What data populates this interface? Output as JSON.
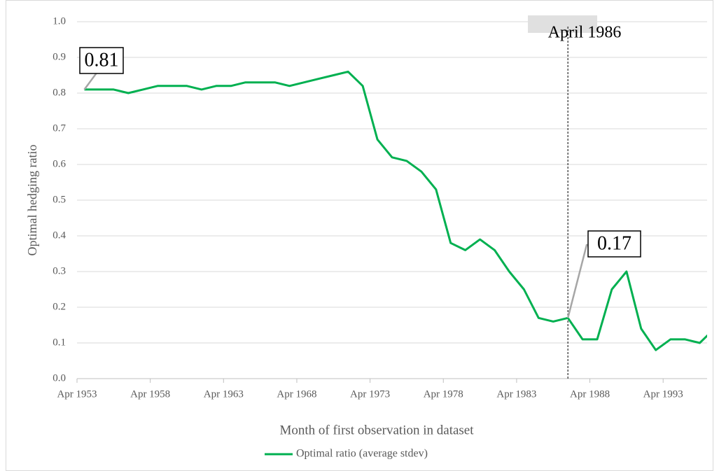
{
  "chart_data": {
    "type": "line",
    "y_label": "Optimal hedging ratio",
    "x_label": "Month of first observation in dataset",
    "categories": [
      "Apr 1953",
      null,
      null,
      null,
      null,
      "Apr 1958",
      null,
      null,
      null,
      null,
      "Apr 1963",
      null,
      null,
      null,
      null,
      "Apr 1968",
      null,
      null,
      null,
      null,
      "Apr 1973",
      null,
      null,
      null,
      null,
      "Apr 1978",
      null,
      null,
      null,
      null,
      "Apr 1983",
      null,
      null,
      null,
      null,
      "Apr 1988",
      null,
      null,
      null,
      null,
      "Apr 1993",
      null,
      null,
      null
    ],
    "series": [
      {
        "name": "Optimal ratio (average stdev)",
        "color": "#00b050",
        "values": [
          0.81,
          0.81,
          0.81,
          0.8,
          0.81,
          0.82,
          0.82,
          0.82,
          0.81,
          0.82,
          0.82,
          0.83,
          0.83,
          0.83,
          0.82,
          0.83,
          0.84,
          0.85,
          0.86,
          0.82,
          0.67,
          0.62,
          0.61,
          0.58,
          0.53,
          0.38,
          0.36,
          0.39,
          0.36,
          0.3,
          0.25,
          0.17,
          0.16,
          0.17,
          0.11,
          0.11,
          0.25,
          0.3,
          0.14,
          0.08,
          0.11,
          0.11,
          0.1,
          0.14
        ]
      }
    ],
    "ylim": [
      0,
      1
    ],
    "yticks": [
      {
        "value": 0,
        "label": "0.0"
      },
      0.1,
      0.2,
      0.3,
      0.4,
      0.5,
      0.6,
      0.7,
      0.8,
      0.9,
      {
        "value": 1,
        "label": "1.0"
      }
    ],
    "grid": true,
    "legend": "bottom",
    "annotations": [
      {
        "text": "April 1986"
      }
    ]
  }
}
